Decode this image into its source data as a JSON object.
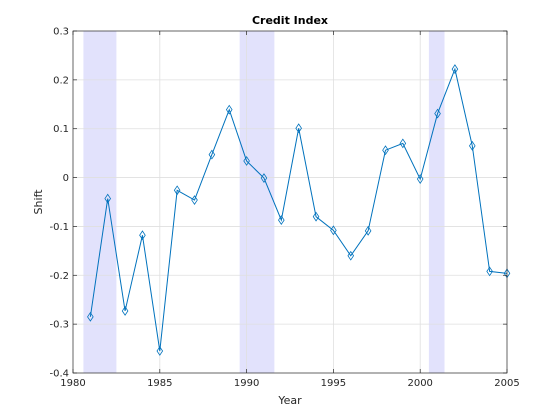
{
  "chart_data": {
    "type": "line",
    "title": "Credit Index",
    "xlabel": "Year",
    "ylabel": "Shift",
    "xlim": [
      1980,
      2005
    ],
    "ylim": [
      -0.4,
      0.3
    ],
    "xticks": [
      1980,
      1985,
      1990,
      1995,
      2000,
      2005
    ],
    "xtick_labels": [
      "1980",
      "1985",
      "1990",
      "1995",
      "2000",
      "2005"
    ],
    "yticks": [
      -0.4,
      -0.3,
      -0.2,
      -0.1,
      0,
      0.1,
      0.2,
      0.3
    ],
    "ytick_labels": [
      "-0.4",
      "-0.3",
      "-0.2",
      "-0.1",
      "0",
      "0.1",
      "0.2",
      "0.3"
    ],
    "grid": true,
    "shaded_regions": [
      {
        "x0": 1980.6,
        "x1": 1982.5
      },
      {
        "x0": 1989.6,
        "x1": 1991.6
      },
      {
        "x0": 2000.5,
        "x1": 2001.4
      }
    ],
    "series": [
      {
        "x": [
          1981,
          1982,
          1983,
          1984,
          1985,
          1986,
          1987,
          1988,
          1989,
          1990,
          1991,
          1992,
          1993,
          1994,
          1995,
          1996,
          1997,
          1998,
          1999,
          2000,
          2001,
          2002,
          2003,
          2004,
          2005
        ],
        "values": [
          -0.285,
          -0.043,
          -0.273,
          -0.118,
          -0.355,
          -0.026,
          -0.046,
          0.047,
          0.139,
          0.034,
          -0.001,
          -0.087,
          0.101,
          -0.08,
          -0.108,
          -0.16,
          -0.109,
          0.056,
          0.07,
          -0.003,
          0.131,
          0.222,
          0.065,
          -0.192,
          -0.196
        ],
        "marker": "diamond"
      }
    ],
    "colors": {
      "line": "#0072BD",
      "marker_edge": "#0072BD",
      "shade": "#e2e2fc",
      "grid": "#dfdfdf",
      "axis": "#262626"
    }
  }
}
